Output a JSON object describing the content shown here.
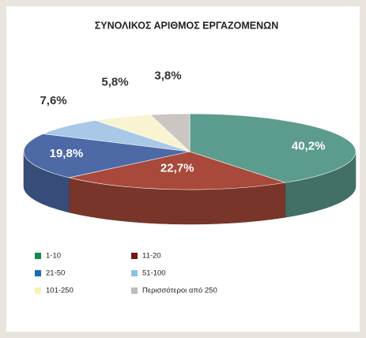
{
  "chart_data": {
    "type": "pie3d",
    "title": "ΣΥΝΟΛΙΚΟΣ ΑΡΙΘΜΟΣ ΕΡΓΑΖΟΜΕΝΩΝ",
    "categories": [
      "1-10",
      "11-20",
      "21-50",
      "51-100",
      "101-250",
      "Περισσότεροι από 250"
    ],
    "values": [
      40.2,
      22.7,
      19.8,
      7.6,
      5.8,
      3.8
    ],
    "value_labels": [
      "40,2%",
      "22,7%",
      "19,8%",
      "7,6%",
      "5,8%",
      "3,8%"
    ],
    "colors": [
      "#5c9c8e",
      "#a8493b",
      "#4d6aa6",
      "#a9c7e6",
      "#f8f4d2",
      "#cbc6c1"
    ],
    "legend_colors": [
      "#0f8a4c",
      "#7a1212",
      "#1a6cb2",
      "#8cc2ea",
      "#f9f1b6",
      "#bcbcbc"
    ]
  }
}
